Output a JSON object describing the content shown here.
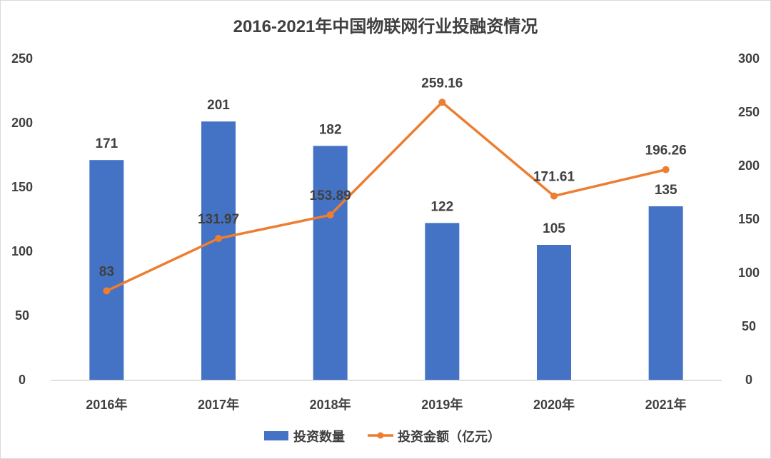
{
  "chart_data": {
    "type": "bar",
    "title": "2016-2021年中国物联网行业投融资情况",
    "categories": [
      "2016年",
      "2017年",
      "2018年",
      "2019年",
      "2020年",
      "2021年"
    ],
    "series": [
      {
        "name": "投资数量",
        "type": "bar",
        "axis": "left",
        "color": "#4472C4",
        "values": [
          171,
          201,
          182,
          122,
          105,
          135
        ],
        "labels": [
          "171",
          "201",
          "182",
          "122",
          "105",
          "135"
        ]
      },
      {
        "name": "投资金额（亿元）",
        "type": "line",
        "axis": "right",
        "color": "#ED7D31",
        "values": [
          83,
          131.97,
          153.89,
          259.16,
          171.61,
          196.26
        ],
        "labels": [
          "83",
          "131.97",
          "153.89",
          "259.16",
          "171.61",
          "196.26"
        ]
      }
    ],
    "y_left": {
      "range": [
        0,
        250
      ],
      "ticks": [
        "0",
        "50",
        "100",
        "150",
        "200",
        "250"
      ]
    },
    "y_right": {
      "range": [
        0,
        300
      ],
      "ticks": [
        "0",
        "50",
        "100",
        "150",
        "200",
        "250",
        "300"
      ]
    },
    "grid": false,
    "legend_position": "bottom"
  }
}
